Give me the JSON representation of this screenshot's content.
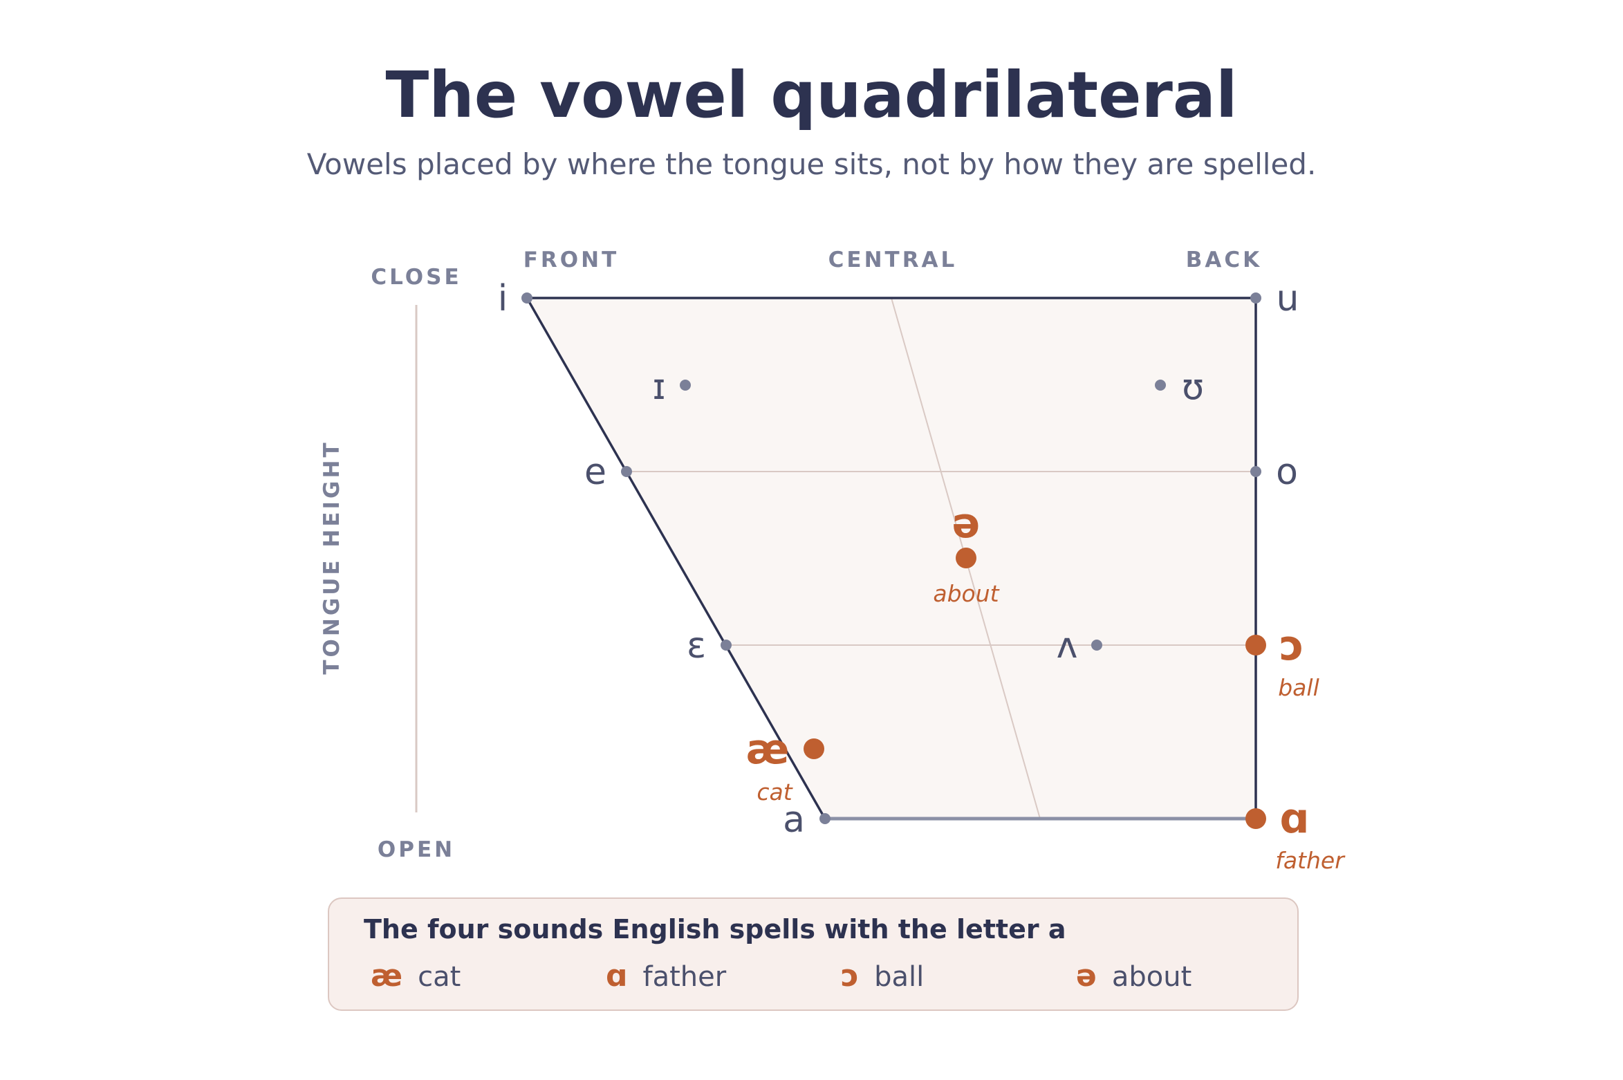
{
  "title": "The vowel quadrilateral",
  "subtitle": "Vowels placed by where the tongue sits, not by how they are spelled.",
  "axes": {
    "front": "FRONT",
    "central": "CENTRAL",
    "back": "BACK",
    "close": "CLOSE",
    "open": "OPEN",
    "height": "TONGUE HEIGHT"
  },
  "colors": {
    "outline": "#2d3250",
    "fill": "#faf6f4",
    "grid": "#d9c9c4",
    "point": "#7b8098",
    "highlight": "#bf5f30"
  },
  "vowels": [
    {
      "symbol": "i",
      "example": "",
      "highlight": false
    },
    {
      "symbol": "u",
      "example": "",
      "highlight": false
    },
    {
      "symbol": "ɪ",
      "example": "",
      "highlight": false
    },
    {
      "symbol": "ʊ",
      "example": "",
      "highlight": false
    },
    {
      "symbol": "e",
      "example": "",
      "highlight": false
    },
    {
      "symbol": "o",
      "example": "",
      "highlight": false
    },
    {
      "symbol": "ə",
      "example": "about",
      "highlight": true
    },
    {
      "symbol": "ɛ",
      "example": "",
      "highlight": false
    },
    {
      "symbol": "ʌ",
      "example": "",
      "highlight": false
    },
    {
      "symbol": "ɔ",
      "example": "ball",
      "highlight": true
    },
    {
      "symbol": "æ",
      "example": "cat",
      "highlight": true
    },
    {
      "symbol": "a",
      "example": "",
      "highlight": false
    },
    {
      "symbol": "ɑ",
      "example": "father",
      "highlight": true
    }
  ],
  "legend": {
    "title": "The four sounds English spells with the letter a",
    "items": [
      {
        "symbol": "æ",
        "word": "cat"
      },
      {
        "symbol": "ɑ",
        "word": "father"
      },
      {
        "symbol": "ɔ",
        "word": "ball"
      },
      {
        "symbol": "ə",
        "word": "about"
      }
    ]
  }
}
